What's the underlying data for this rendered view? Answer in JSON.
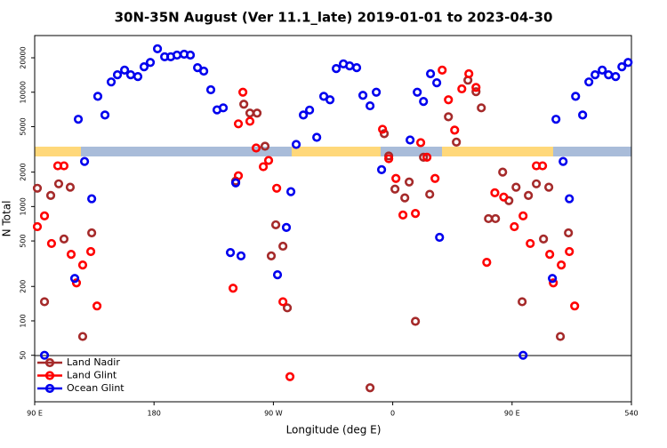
{
  "chart_data": {
    "type": "scatter",
    "title": "30N-35N August (Ver 11.1_late)   2019-01-01 to 2023-04-30",
    "x_label": "Longitude (deg E)",
    "y_label": "N Total",
    "xlim": [
      90,
      540
    ],
    "ylim": [
      19.6,
      31300
    ],
    "log_y": true,
    "grid": false,
    "legend": "lower left",
    "xticks": [
      {
        "value": 90,
        "label": "90 E"
      },
      180,
      {
        "value": 270,
        "label": "90 W"
      },
      {
        "value": 360,
        "label": "0"
      },
      {
        "value": 450,
        "label": "90 E"
      },
      540
    ],
    "yticks": [
      50,
      100,
      200,
      500,
      1000,
      2000,
      5000,
      10000,
      20000
    ],
    "series": [
      {
        "name": "Land Nadir",
        "color": "#a52a2a",
        "x": [
          92,
          97.4,
          102.1,
          108.1,
          112.1,
          116.8,
          126.2,
          133,
          241.6,
          247.7,
          252.3,
          257.7,
          263.7,
          268.4,
          271.8,
          277.2,
          280.5,
          342.9,
          353.6,
          357,
          361.7,
          369.1,
          372.4,
          377.1,
          383.2,
          387.9,
          402,
          408,
          416.7,
          422.8,
          426.8,
          432.2,
          437.5,
          442.9,
          447.6,
          453,
          457.6,
          462.3,
          468.3,
          473.7,
          477.7,
          486.4,
          492.5
        ],
        "values": [
          1445,
          147,
          1250,
          1580,
          520,
          1475,
          73,
          588,
          1670,
          7850,
          6560,
          6560,
          3370,
          370,
          692,
          450,
          130,
          26,
          4340,
          2770,
          1420,
          1190,
          1640,
          99,
          2700,
          1280,
          6100,
          3660,
          12740,
          10100,
          7300,
          784,
          784,
          2000,
          1125,
          1475,
          147,
          1250,
          1580,
          520,
          1475,
          73,
          588
        ]
      },
      {
        "name": "Land Glint",
        "color": "#ff0000",
        "x": [
          92,
          97.4,
          102.7,
          107.4,
          112.1,
          117.5,
          121.5,
          126.2,
          132.3,
          137,
          239.6,
          243.6,
          247,
          243.6,
          252.3,
          257,
          262.4,
          266.4,
          272.5,
          277.2,
          282.5,
          352.3,
          357,
          362.4,
          367.7,
          377.1,
          381.1,
          385.8,
          391.9,
          397.3,
          402,
          406.7,
          412.1,
          417.4,
          422.8,
          430.9,
          437,
          443.7,
          451.7,
          458.3,
          463.7,
          468.3,
          473,
          478.4,
          481.1,
          487.1,
          493.2,
          497.2
        ],
        "values": [
          667,
          828,
          475,
          2270,
          2270,
          382,
          215,
          308,
          404,
          135,
          193,
          1860,
          10000,
          5290,
          5570,
          3250,
          2230,
          2530,
          1445,
          147,
          32.5,
          4740,
          2620,
          1760,
          843,
          870,
          3620,
          2700,
          1760,
          15600,
          8590,
          4660,
          10700,
          14500,
          11000,
          325,
          1320,
          1210,
          667,
          828,
          475,
          2270,
          2270,
          382,
          215,
          308,
          404,
          135
        ]
      },
      {
        "name": "Ocean Glint",
        "color": "#0000ee",
        "x": [
          97.4,
          120.2,
          122.9,
          127.6,
          133,
          137.6,
          143,
          147.7,
          152.4,
          157.8,
          162.4,
          167.8,
          172.5,
          177.2,
          182.6,
          188,
          192.6,
          197.3,
          202.7,
          207.4,
          212.8,
          217.5,
          222.8,
          227.5,
          232.2,
          237.6,
          241.6,
          245.6,
          273.1,
          279.8,
          283.2,
          287.2,
          292.6,
          297.3,
          302.7,
          308,
          312.7,
          317.4,
          322.8,
          327.5,
          332.8,
          337.5,
          342.9,
          347.6,
          351.6,
          373.1,
          378.5,
          383.2,
          388.5,
          393.2,
          395.3,
          458.3,
          480.4,
          483.1,
          488.5,
          493.2,
          497.9,
          503.2,
          507.9,
          512.6,
          518,
          522.7,
          528.1,
          532.8,
          537.5
        ],
        "values": [
          50,
          235,
          5800,
          2480,
          1170,
          9200,
          6320,
          12300,
          14200,
          15600,
          14200,
          13700,
          16700,
          18200,
          23970,
          20400,
          20400,
          21100,
          21500,
          21100,
          16400,
          15300,
          10500,
          7000,
          7300,
          396,
          1610,
          370,
          253,
          656,
          1350,
          3490,
          6320,
          6980,
          4030,
          9200,
          8590,
          16100,
          17700,
          17000,
          16400,
          9390,
          7600,
          10000,
          2100,
          3820,
          10000,
          8300,
          14500,
          12100,
          538,
          50,
          235,
          5800,
          2480,
          1170,
          9200,
          6320,
          12300,
          14200,
          15600,
          14200,
          13700,
          16700,
          18200
        ]
      }
    ]
  }
}
